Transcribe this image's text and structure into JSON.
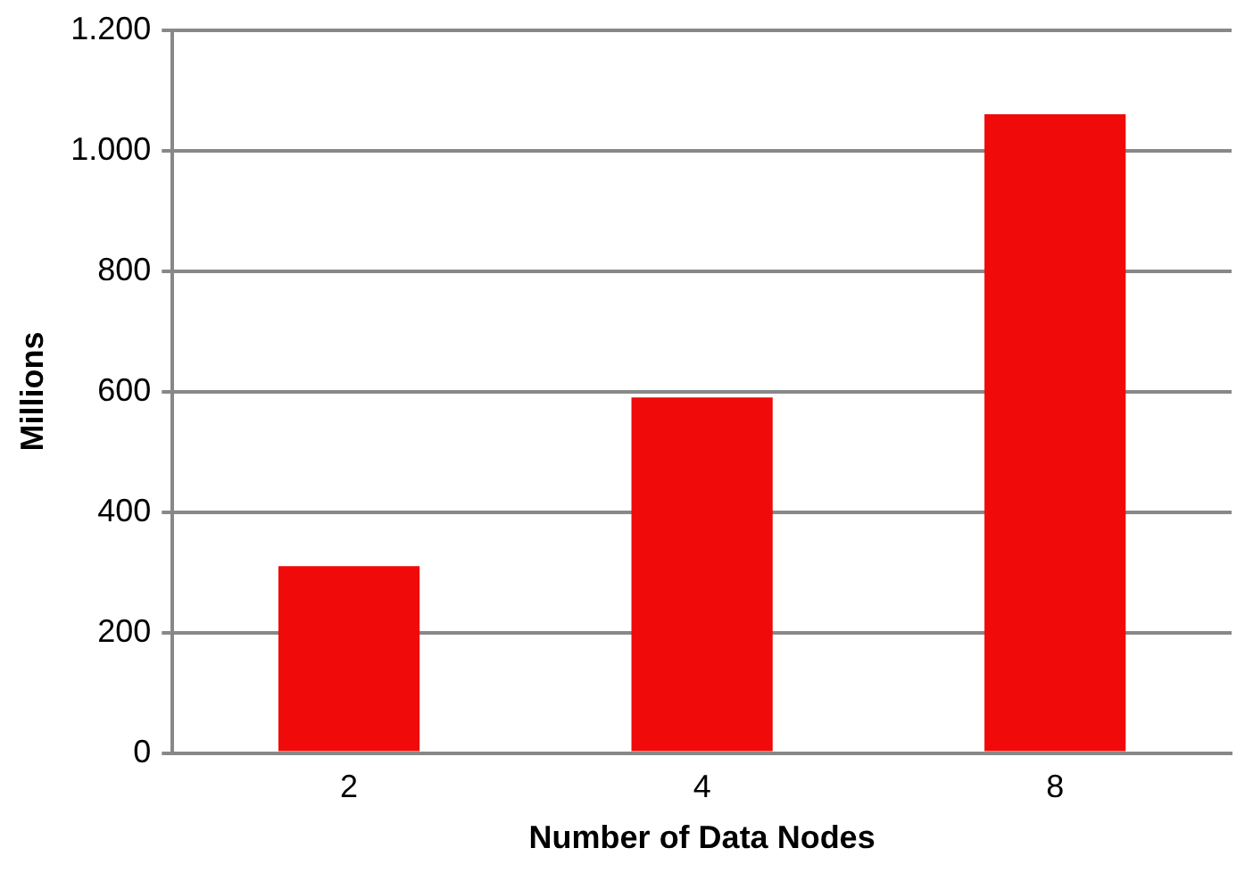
{
  "chart_data": {
    "type": "bar",
    "xlabel": "Number of Data Nodes",
    "ylabel": "Millions",
    "categories": [
      "2",
      "4",
      "8"
    ],
    "values": [
      310,
      590,
      1060
    ],
    "color": "#f00a0a",
    "ylim": [
      0,
      1200
    ],
    "yticks": [
      0,
      200,
      400,
      600,
      800,
      {
        "value": 1000,
        "label": "1.000"
      },
      {
        "value": 1200,
        "label": "1.200"
      }
    ],
    "grid": "y",
    "legend": false
  }
}
